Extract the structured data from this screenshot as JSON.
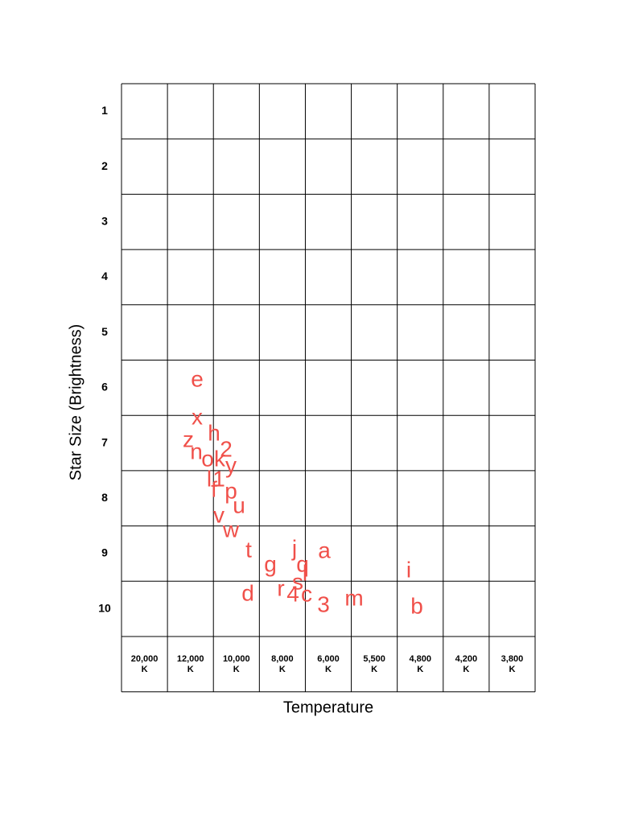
{
  "diagram": {
    "y_axis_title": "Star Size (Brightness)",
    "x_axis_title": "Temperature",
    "row_labels": [
      "1",
      "2",
      "3",
      "4",
      "5",
      "6",
      "7",
      "8",
      "9",
      "10"
    ],
    "column_labels": [
      [
        "20,000",
        "K"
      ],
      [
        "12,000",
        "K"
      ],
      [
        "10,000",
        "K"
      ],
      [
        "8,000",
        "K"
      ],
      [
        "6,000",
        "K"
      ],
      [
        "5,500",
        "K"
      ],
      [
        "4,800",
        "K"
      ],
      [
        "4,200",
        "K"
      ],
      [
        "3,800",
        "K"
      ]
    ],
    "stars": [
      "e",
      "x",
      "h",
      "z",
      "2",
      "n",
      "o",
      "k",
      "y",
      "l",
      "1",
      "f",
      "p",
      "u",
      "v",
      "w",
      "t",
      "g",
      "j",
      "q",
      "a",
      "l",
      "s",
      "r",
      "4",
      "c",
      "d",
      "3",
      "m",
      "i",
      "b"
    ]
  }
}
